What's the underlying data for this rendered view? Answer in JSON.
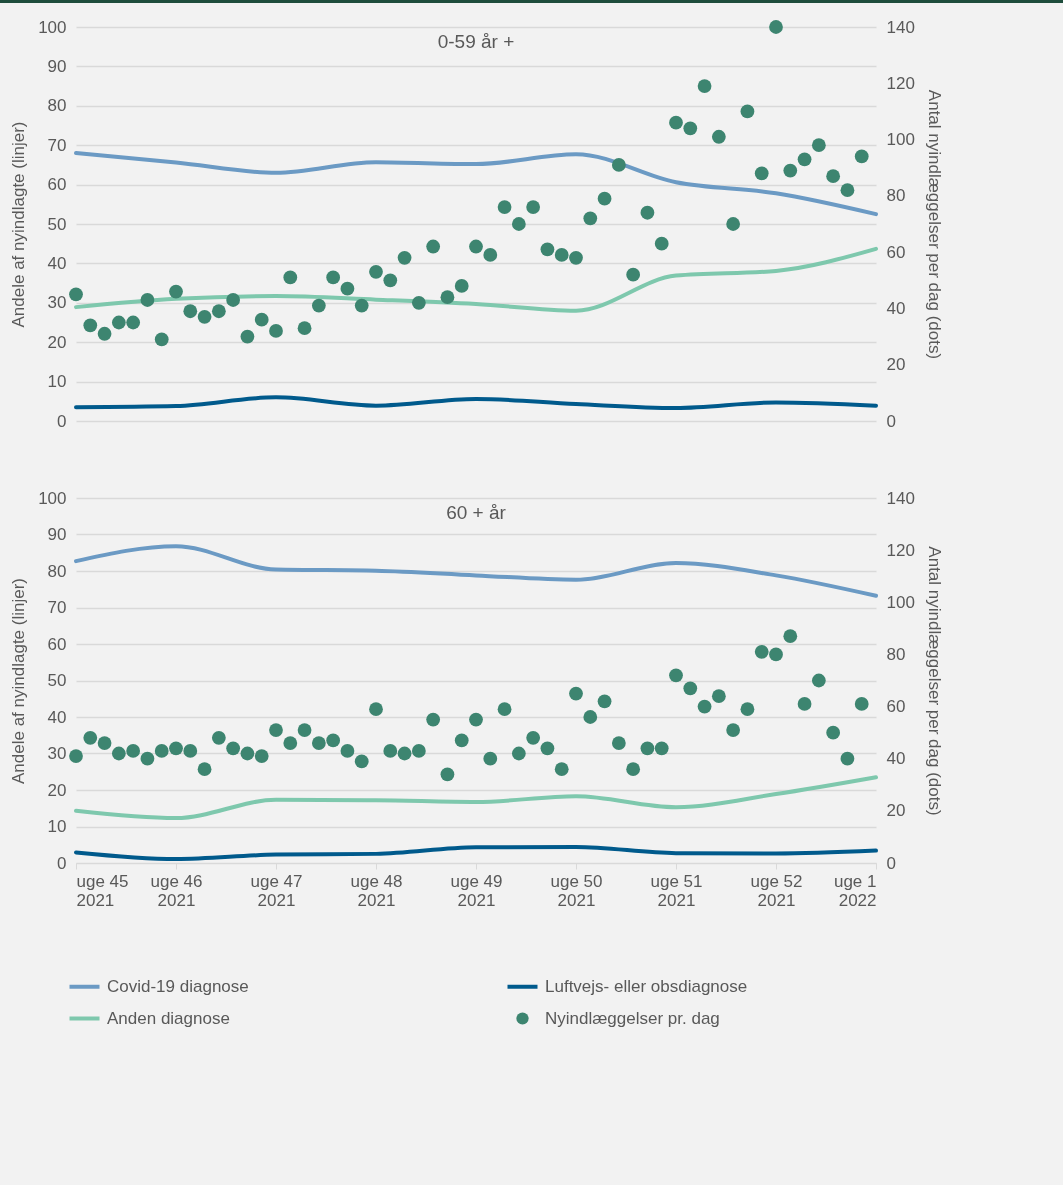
{
  "chart_data": [
    {
      "type": "line",
      "title": "0-59 år +",
      "ylabel": "Andele af nyindlagte (linjer)",
      "y2label": "Antal nyindlæggelser per dag (dots)",
      "xlim": [
        "2021-11-08",
        "2022-01-03"
      ],
      "xticks": [
        {
          "value": "2021-11-08",
          "label": null
        },
        {
          "value": "2021-11-15",
          "label": null
        },
        {
          "value": "2021-11-22",
          "label": null
        },
        {
          "value": "2021-11-29",
          "label": null
        },
        {
          "value": "2021-12-06",
          "label": null
        },
        {
          "value": "2021-12-13",
          "label": null
        },
        {
          "value": "2021-12-20",
          "label": null
        },
        {
          "value": "2021-12-27",
          "label": null
        },
        {
          "value": "2022-01-03",
          "label": null
        }
      ],
      "ylim": [
        0,
        100
      ],
      "yticks": [
        0,
        10,
        20,
        30,
        40,
        50,
        60,
        70,
        80,
        90,
        100
      ],
      "y2lim": [
        0,
        140
      ],
      "y2ticks": [
        0,
        20,
        40,
        60,
        80,
        100,
        120,
        140
      ],
      "grid": "y",
      "tick_labels": "y",
      "series": [
        {
          "color": "#6b9ac4",
          "type": "line",
          "x": [
            "2021-11-08",
            "2021-11-15",
            "2021-11-22",
            "2021-11-29",
            "2021-12-06",
            "2021-12-13",
            "2021-12-20",
            "2021-12-27",
            "2022-01-03"
          ],
          "values": [
            68,
            65.6,
            63,
            65.7,
            65.2,
            67.7,
            60.6,
            57.8,
            52.5
          ]
        },
        {
          "color": "#005a8c",
          "type": "line",
          "x": [
            "2021-11-08",
            "2021-11-15",
            "2021-11-22",
            "2021-11-29",
            "2021-12-06",
            "2021-12-13",
            "2021-12-20",
            "2021-12-27",
            "2022-01-03"
          ],
          "values": [
            3.5,
            3.8,
            6,
            3.9,
            5.6,
            4.3,
            3.3,
            4.7,
            3.9
          ]
        },
        {
          "color": "#7ec8ad",
          "type": "line",
          "x": [
            "2021-11-08",
            "2021-11-15",
            "2021-11-22",
            "2021-11-29",
            "2021-12-06",
            "2021-12-13",
            "2021-12-20",
            "2021-12-27",
            "2022-01-03"
          ],
          "values": [
            28.9,
            31,
            31.7,
            30.8,
            29.7,
            28,
            36.9,
            38.1,
            43.7
          ]
        },
        {
          "color": "#3d8570",
          "type": "scatter",
          "axis": "y2",
          "x": [
            "2021-11-08",
            "2021-11-09",
            "2021-11-10",
            "2021-11-11",
            "2021-11-12",
            "2021-11-13",
            "2021-11-14",
            "2021-11-15",
            "2021-11-16",
            "2021-11-17",
            "2021-11-18",
            "2021-11-19",
            "2021-11-20",
            "2021-11-21",
            "2021-11-22",
            "2021-11-23",
            "2021-11-24",
            "2021-11-25",
            "2021-11-26",
            "2021-11-27",
            "2021-11-28",
            "2021-11-29",
            "2021-11-30",
            "2021-12-01",
            "2021-12-02",
            "2021-12-03",
            "2021-12-04",
            "2021-12-05",
            "2021-12-06",
            "2021-12-07",
            "2021-12-08",
            "2021-12-09",
            "2021-12-10",
            "2021-12-11",
            "2021-12-12",
            "2021-12-13",
            "2021-12-14",
            "2021-12-15",
            "2021-12-16",
            "2021-12-17",
            "2021-12-18",
            "2021-12-19",
            "2021-12-20",
            "2021-12-21",
            "2021-12-22",
            "2021-12-23",
            "2021-12-24",
            "2021-12-25",
            "2021-12-26",
            "2021-12-27",
            "2021-12-28",
            "2021-12-29",
            "2021-12-30",
            "2021-12-31",
            "2022-01-01",
            "2022-01-02"
          ],
          "values": [
            45,
            34,
            31,
            35,
            35,
            43,
            29,
            46,
            39,
            37,
            39,
            43,
            30,
            36,
            32,
            51,
            33,
            41,
            51,
            47,
            41,
            53,
            50,
            58,
            42,
            62,
            44,
            48,
            62,
            59,
            76,
            70,
            76,
            61,
            59,
            58,
            72,
            79,
            91,
            52,
            74,
            63,
            106,
            104,
            119,
            101,
            70,
            110,
            88,
            140,
            89,
            93,
            98,
            87,
            82,
            94
          ]
        }
      ]
    },
    {
      "type": "line",
      "title": "60 + år",
      "ylabel": "Andele af nyindlagte (linjer)",
      "y2label": "Antal nyindlæggelser per dag (dots)",
      "xlim": [
        "2021-11-08",
        "2022-01-03"
      ],
      "xticks": [
        {
          "value": "2021-11-08",
          "label": "uge 45 2021"
        },
        {
          "value": "2021-11-15",
          "label": "uge 46 2021"
        },
        {
          "value": "2021-11-22",
          "label": "uge 47 2021"
        },
        {
          "value": "2021-11-29",
          "label": "uge 48 2021"
        },
        {
          "value": "2021-12-06",
          "label": "uge 49 2021"
        },
        {
          "value": "2021-12-13",
          "label": "uge 50 2021"
        },
        {
          "value": "2021-12-20",
          "label": "uge 51 2021"
        },
        {
          "value": "2021-12-27",
          "label": "uge 52 2021"
        },
        {
          "value": "2022-01-03",
          "label": "uge 1 2022"
        }
      ],
      "ylim": [
        0,
        100
      ],
      "yticks": [
        0,
        10,
        20,
        30,
        40,
        50,
        60,
        70,
        80,
        90,
        100
      ],
      "y2lim": [
        0,
        140
      ],
      "y2ticks": [
        0,
        20,
        40,
        60,
        80,
        100,
        120,
        140
      ],
      "grid": "y",
      "legend": "bottom",
      "series": [
        {
          "name": "Covid-19 diagnose",
          "color": "#6b9ac4",
          "type": "line",
          "x": [
            "2021-11-08",
            "2021-11-15",
            "2021-11-22",
            "2021-11-29",
            "2021-12-06",
            "2021-12-13",
            "2021-12-20",
            "2021-12-27",
            "2022-01-03"
          ],
          "values": [
            82.7,
            86.8,
            80.4,
            80.1,
            78.8,
            77.6,
            82.2,
            78.8,
            73.2
          ]
        },
        {
          "name": "Luftvejs- eller obsdiagnose",
          "color": "#005a8c",
          "type": "line",
          "x": [
            "2021-11-08",
            "2021-11-15",
            "2021-11-22",
            "2021-11-29",
            "2021-12-06",
            "2021-12-13",
            "2021-12-20",
            "2021-12-27",
            "2022-01-03"
          ],
          "values": [
            2.9,
            1.1,
            2.3,
            2.5,
            4.3,
            4.4,
            2.7,
            2.6,
            3.4
          ]
        },
        {
          "name": "Anden diagnose",
          "color": "#7ec8ad",
          "type": "line",
          "x": [
            "2021-11-08",
            "2021-11-15",
            "2021-11-22",
            "2021-11-29",
            "2021-12-06",
            "2021-12-13",
            "2021-12-20",
            "2021-12-27",
            "2022-01-03"
          ],
          "values": [
            14.3,
            12.3,
            17.3,
            17.2,
            16.7,
            18.3,
            15.3,
            18.9,
            23.5
          ]
        },
        {
          "name": "Nyindlæggelser pr. dag",
          "color": "#3d8570",
          "type": "scatter",
          "axis": "y2",
          "x": [
            "2021-11-08",
            "2021-11-09",
            "2021-11-10",
            "2021-11-11",
            "2021-11-12",
            "2021-11-13",
            "2021-11-14",
            "2021-11-15",
            "2021-11-16",
            "2021-11-17",
            "2021-11-18",
            "2021-11-19",
            "2021-11-20",
            "2021-11-21",
            "2021-11-22",
            "2021-11-23",
            "2021-11-24",
            "2021-11-25",
            "2021-11-26",
            "2021-11-27",
            "2021-11-28",
            "2021-11-29",
            "2021-11-30",
            "2021-12-01",
            "2021-12-02",
            "2021-12-03",
            "2021-12-04",
            "2021-12-05",
            "2021-12-06",
            "2021-12-07",
            "2021-12-08",
            "2021-12-09",
            "2021-12-10",
            "2021-12-11",
            "2021-12-12",
            "2021-12-13",
            "2021-12-14",
            "2021-12-15",
            "2021-12-16",
            "2021-12-17",
            "2021-12-18",
            "2021-12-19",
            "2021-12-20",
            "2021-12-21",
            "2021-12-22",
            "2021-12-23",
            "2021-12-24",
            "2021-12-25",
            "2021-12-26",
            "2021-12-27",
            "2021-12-28",
            "2021-12-29",
            "2021-12-30",
            "2021-12-31",
            "2022-01-01",
            "2022-01-02"
          ],
          "values": [
            41,
            48,
            46,
            42,
            43,
            40,
            43,
            44,
            43,
            36,
            48,
            44,
            42,
            41,
            51,
            46,
            51,
            46,
            47,
            43,
            39,
            59,
            43,
            42,
            43,
            55,
            34,
            47,
            55,
            40,
            59,
            42,
            48,
            44,
            36,
            65,
            56,
            62,
            46,
            36,
            44,
            44,
            72,
            67,
            60,
            64,
            51,
            59,
            81,
            80,
            87,
            61,
            70,
            50,
            40,
            61
          ]
        }
      ]
    }
  ]
}
